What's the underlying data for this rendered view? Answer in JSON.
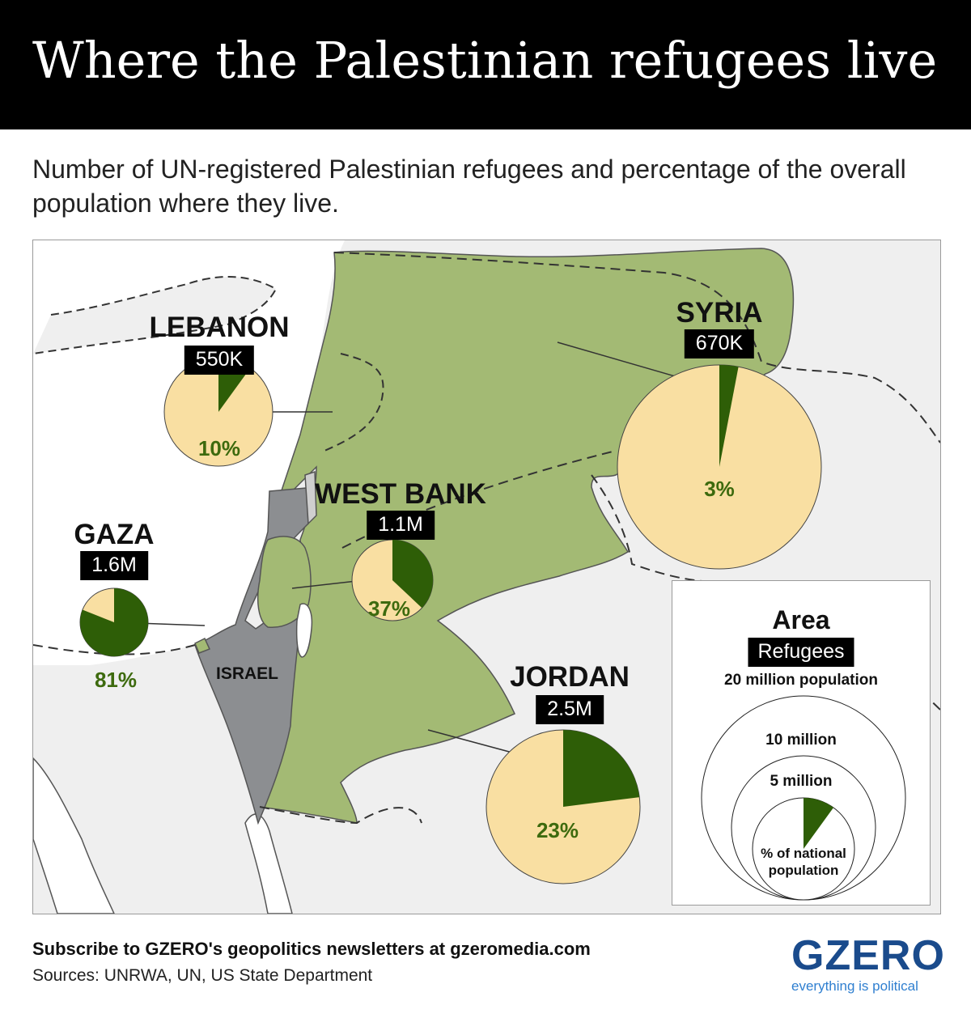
{
  "title": "Where the Palestinian refugees live",
  "subtitle": "Number of UN-registered Palestinian refugees and percentage of the overall population where they live.",
  "colors": {
    "land_highlight": "#a3ba74",
    "israel": "#8c8e91",
    "refugee_share": "#2e5e07",
    "rest_of_population": "#f9dfa2",
    "percent_text": "#3d6a0e",
    "sea": "#ffffff",
    "other_land": "#efefef",
    "brand": "#1a4b8c",
    "tagline": "#2f7fd0"
  },
  "chart_data": {
    "type": "pie",
    "encoding": "Circle area = national population; green slice = share of refugees",
    "places": [
      {
        "name": "LEBANON",
        "refugees": "550K",
        "percent_label": "10%",
        "percent": 10
      },
      {
        "name": "SYRIA",
        "refugees": "670K",
        "percent_label": "3%",
        "percent": 3
      },
      {
        "name": "WEST BANK",
        "refugees": "1.1M",
        "percent_label": "37%",
        "percent": 37
      },
      {
        "name": "GAZA",
        "refugees": "1.6M",
        "percent_label": "81%",
        "percent": 81
      },
      {
        "name": "JORDAN",
        "refugees": "2.5M",
        "percent_label": "23%",
        "percent": 23
      }
    ]
  },
  "map_labels": {
    "israel": "ISRAEL"
  },
  "legend": {
    "title": "Area",
    "badge": "Refugees",
    "label_20m": "20 million population",
    "label_10m": "10 million",
    "label_5m": "5 million",
    "label_pct": "% of national population",
    "example_percent": 10
  },
  "footer": {
    "subscribe": "Subscribe to GZERO's geopolitics newsletters at gzeromedia.com",
    "sources": "Sources: UNRWA, UN, US State Department",
    "brand": "GZERO",
    "tagline": "everything is political"
  }
}
